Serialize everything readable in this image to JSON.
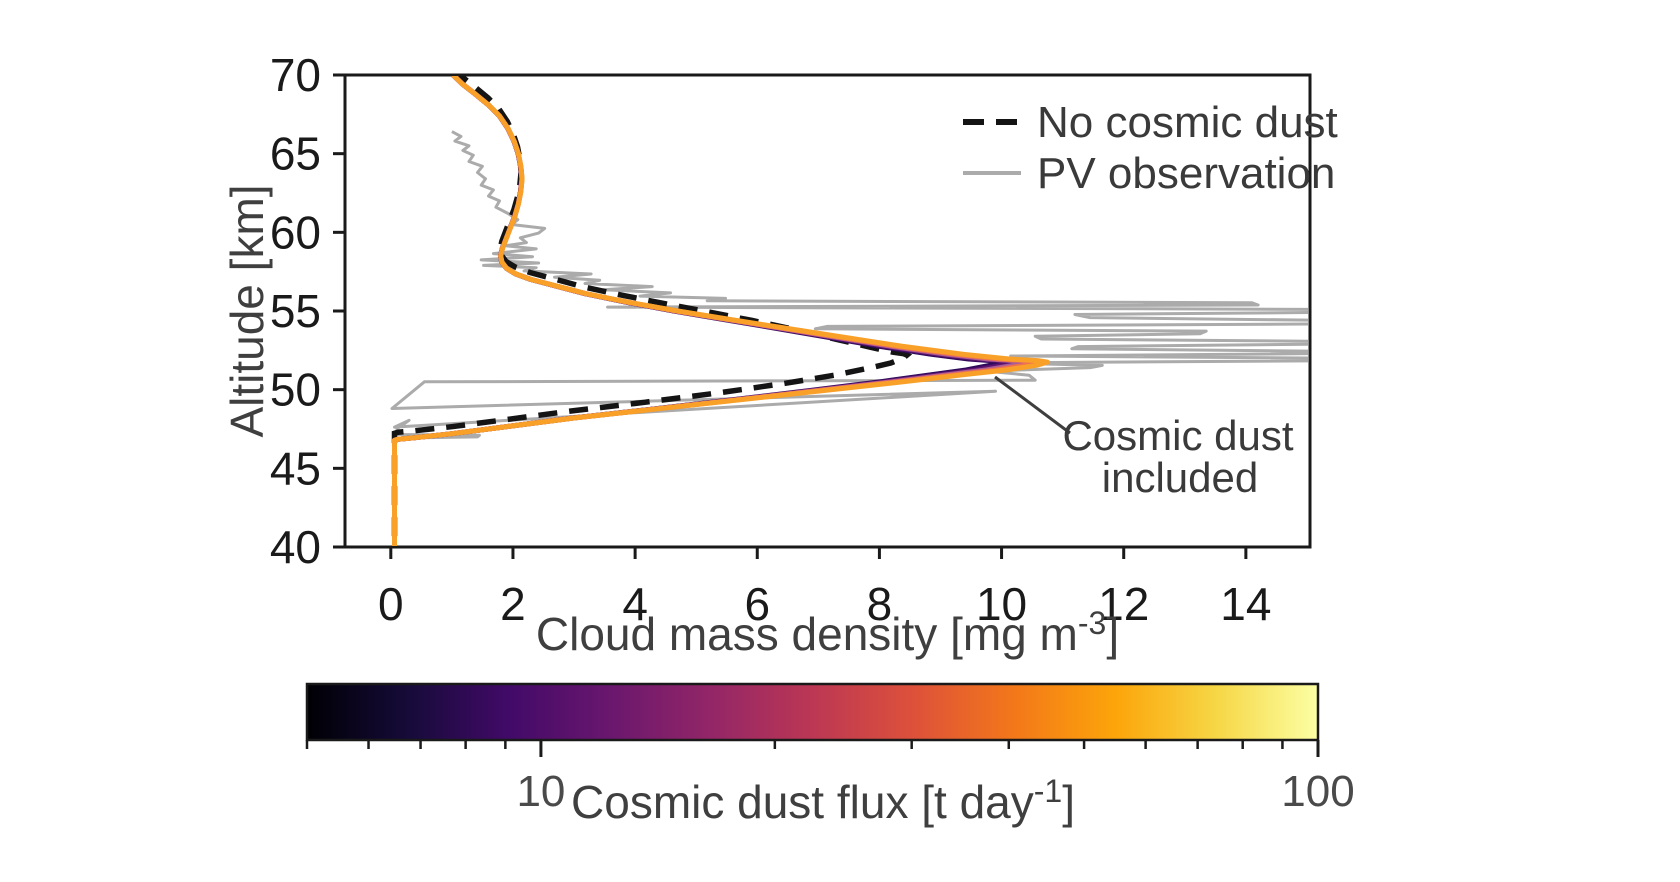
{
  "chart_data": {
    "type": "line",
    "title": "",
    "xlabel": {
      "pre": "Cloud mass density [mg m",
      "sup": "-3",
      "post": "]"
    },
    "ylabel": "Altitude [km]",
    "xlim": [
      -0.75,
      15.05
    ],
    "ylim": [
      40,
      70
    ],
    "xticks": [
      0,
      2,
      4,
      6,
      8,
      10,
      12,
      14
    ],
    "yticks": [
      40,
      45,
      50,
      55,
      60,
      65,
      70
    ],
    "grid": false,
    "legend": {
      "position": "upper right",
      "items": [
        {
          "label": "No cosmic dust",
          "style": "dashed",
          "color": "#141414"
        },
        {
          "label": "PV observation",
          "style": "solid",
          "color": "#ababab"
        }
      ]
    },
    "annotation": {
      "line1": "Cosmic dust",
      "line2": "included"
    },
    "series": {
      "cosmic_dust_included": {
        "description": "Model profiles with cosmic dust, colored by cosmic dust flux (inferno colormap, low flux dark purple to high flux orange)",
        "colors": [
          "#2f0a5b",
          "#5c126e",
          "#a85d97",
          "#ee7052",
          "#f9a029"
        ],
        "peak_densities_mg_m3": [
          9.95,
          10.15,
          10.35,
          10.55,
          10.75
        ],
        "peak_altitude_km": 51.8,
        "base_points": [
          [
            1.02,
            70
          ],
          [
            1.18,
            69.4
          ],
          [
            1.38,
            68.8
          ],
          [
            1.6,
            68.1
          ],
          [
            1.78,
            67.4
          ],
          [
            1.92,
            66.6
          ],
          [
            2.02,
            65.8
          ],
          [
            2.09,
            65.0
          ],
          [
            2.13,
            64.2
          ],
          [
            2.15,
            63.4
          ],
          [
            2.13,
            62.6
          ],
          [
            2.09,
            61.8
          ],
          [
            2.03,
            61.0
          ],
          [
            1.96,
            60.3
          ],
          [
            1.89,
            59.6
          ],
          [
            1.83,
            59.0
          ],
          [
            1.8,
            58.5
          ],
          [
            1.82,
            58.1
          ],
          [
            1.9,
            57.7
          ],
          [
            2.05,
            57.35
          ],
          [
            2.3,
            57.0
          ],
          [
            2.7,
            56.6
          ],
          [
            3.2,
            56.1
          ],
          [
            3.9,
            55.55
          ],
          [
            4.7,
            55.0
          ],
          [
            5.5,
            54.5
          ],
          [
            6.4,
            53.95
          ],
          [
            7.4,
            53.35
          ],
          [
            8.4,
            52.75
          ],
          [
            9.4,
            52.25
          ],
          [
            10.15,
            51.95
          ],
          [
            10.62,
            51.85
          ],
          [
            10.78,
            51.75
          ],
          [
            10.6,
            51.55
          ],
          [
            10.1,
            51.25
          ],
          [
            9.4,
            50.95
          ],
          [
            8.4,
            50.5
          ],
          [
            7.1,
            49.95
          ],
          [
            5.7,
            49.35
          ],
          [
            4.3,
            48.75
          ],
          [
            3.0,
            48.2
          ],
          [
            1.9,
            47.65
          ],
          [
            1.0,
            47.2
          ],
          [
            0.4,
            46.95
          ],
          [
            0.12,
            46.85
          ],
          [
            0.06,
            46.78
          ],
          [
            0.06,
            45.5
          ],
          [
            0.06,
            43
          ],
          [
            0.06,
            40
          ]
        ]
      },
      "no_cosmic_dust": {
        "peak_density_mg_m3": 8.45,
        "peak_altitude_km": 52.3,
        "offset_at_peak": 2.3
      },
      "pv_observation": {
        "points": [
          [
            1.0,
            66.4
          ],
          [
            1.15,
            66.1
          ],
          [
            1.05,
            65.8
          ],
          [
            1.28,
            65.5
          ],
          [
            1.18,
            65.2
          ],
          [
            1.35,
            64.9
          ],
          [
            1.28,
            64.5
          ],
          [
            1.5,
            64.2
          ],
          [
            1.42,
            63.8
          ],
          [
            1.55,
            63.4
          ],
          [
            1.48,
            63.0
          ],
          [
            1.68,
            62.7
          ],
          [
            1.6,
            62.3
          ],
          [
            1.78,
            62.0
          ],
          [
            1.72,
            61.6
          ],
          [
            1.92,
            61.2
          ],
          [
            2.08,
            60.8
          ],
          [
            1.98,
            60.5
          ],
          [
            2.52,
            60.25
          ],
          [
            2.42,
            59.95
          ],
          [
            2.12,
            59.65
          ],
          [
            2.22,
            59.35
          ],
          [
            1.88,
            59.15
          ],
          [
            2.38,
            58.95
          ],
          [
            1.68,
            58.65
          ],
          [
            2.32,
            58.45
          ],
          [
            1.48,
            58.25
          ],
          [
            2.42,
            58.05
          ],
          [
            1.52,
            57.9
          ],
          [
            2.38,
            57.75
          ],
          [
            2.18,
            57.55
          ],
          [
            3.28,
            57.35
          ],
          [
            2.68,
            57.15
          ],
          [
            3.42,
            56.95
          ],
          [
            3.18,
            56.75
          ],
          [
            4.28,
            56.55
          ],
          [
            3.48,
            56.35
          ],
          [
            4.58,
            56.15
          ],
          [
            4.08,
            55.95
          ],
          [
            5.48,
            55.8
          ],
          [
            5.18,
            55.65
          ],
          [
            14.1,
            55.52
          ],
          [
            14.2,
            55.38
          ],
          [
            3.55,
            55.25
          ],
          [
            15.4,
            55.1
          ],
          [
            15.4,
            54.92
          ],
          [
            11.2,
            54.78
          ],
          [
            11.45,
            54.58
          ],
          [
            15.4,
            54.4
          ],
          [
            15.4,
            54.18
          ],
          [
            7.15,
            54.02
          ],
          [
            6.95,
            53.87
          ],
          [
            13.35,
            53.72
          ],
          [
            13.25,
            53.55
          ],
          [
            10.55,
            53.4
          ],
          [
            10.65,
            53.22
          ],
          [
            15.4,
            53.07
          ],
          [
            15.4,
            52.9
          ],
          [
            11.25,
            52.74
          ],
          [
            11.15,
            52.6
          ],
          [
            15.4,
            52.44
          ],
          [
            15.4,
            52.3
          ],
          [
            10.15,
            52.14
          ],
          [
            15.4,
            52.0
          ],
          [
            15.4,
            51.84
          ],
          [
            9.85,
            51.7
          ],
          [
            11.65,
            51.54
          ],
          [
            11.45,
            51.4
          ],
          [
            9.75,
            51.18
          ],
          [
            10.45,
            50.92
          ],
          [
            10.55,
            50.6
          ],
          [
            0.55,
            50.5
          ],
          [
            0.02,
            48.8
          ],
          [
            9.9,
            49.9
          ],
          [
            0.06,
            47.62
          ],
          [
            0.3,
            48.05
          ],
          [
            0.1,
            47.5
          ],
          [
            0.12,
            47.15
          ],
          [
            1.45,
            47.1
          ],
          [
            1.42,
            47.0
          ],
          [
            0.1,
            46.92
          ]
        ]
      }
    },
    "colorbar": {
      "label": {
        "pre": "Cosmic dust flux [t day",
        "sup": "-1",
        "post": "]"
      },
      "scale": "log",
      "range_t_per_day": [
        5,
        100
      ],
      "major_ticks": [
        10,
        100
      ],
      "major_tick_labels": [
        "10",
        "100"
      ],
      "minor_ticks": [
        5,
        6,
        7,
        8,
        9,
        20,
        30,
        40,
        50,
        60,
        70,
        80,
        90
      ],
      "colormap": "inferno",
      "gradient_stops": [
        [
          0,
          "#000004"
        ],
        [
          0.1,
          "#160b39"
        ],
        [
          0.2,
          "#420a68"
        ],
        [
          0.3,
          "#6a176e"
        ],
        [
          0.4,
          "#932667"
        ],
        [
          0.5,
          "#bc3754"
        ],
        [
          0.6,
          "#dd513a"
        ],
        [
          0.7,
          "#f37819"
        ],
        [
          0.8,
          "#fca50a"
        ],
        [
          0.9,
          "#f6d746"
        ],
        [
          1,
          "#fcffa4"
        ]
      ]
    },
    "style": {
      "spine_color": "#1a1a1a",
      "tick_color": "#1a1a1a",
      "pv_color": "#ababab",
      "dashed_color": "#141414",
      "annotation_color": "#3f3f3f"
    }
  }
}
